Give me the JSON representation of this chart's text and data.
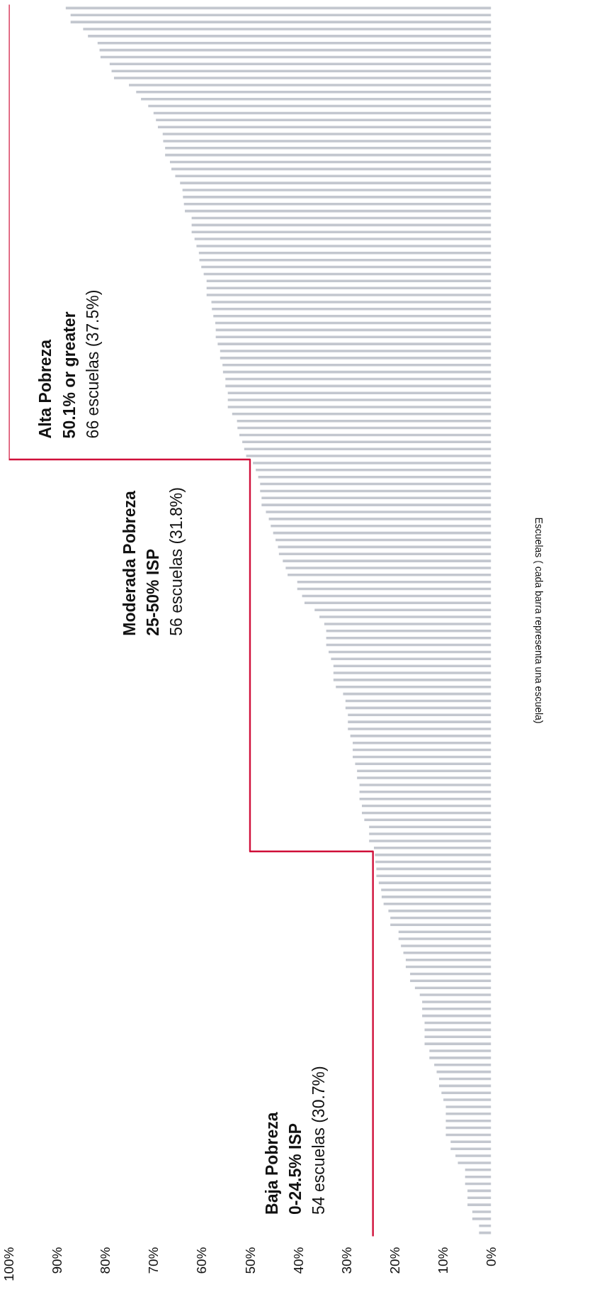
{
  "chart_data": {
    "type": "bar",
    "orientation": "horizontal",
    "categories": [
      null,
      null,
      null,
      null,
      null,
      null,
      null,
      null,
      null,
      null,
      null,
      null,
      null,
      null,
      null,
      null,
      null,
      null,
      null,
      null,
      null,
      null,
      null,
      null,
      null,
      null,
      null,
      null,
      null,
      null,
      null,
      null,
      null,
      null,
      null,
      null,
      null,
      null,
      null,
      null,
      null,
      null,
      null,
      null,
      null,
      null,
      null,
      null,
      null,
      null,
      null,
      null,
      null,
      null,
      null,
      null,
      null,
      null,
      null,
      null,
      null,
      null,
      null,
      null,
      null,
      null,
      null,
      null,
      null,
      null,
      null,
      null,
      null,
      null,
      null,
      null,
      null,
      null,
      null,
      null,
      null,
      null,
      null,
      null,
      null,
      null,
      null,
      null,
      null,
      null,
      null,
      null,
      null,
      null,
      null,
      null,
      null,
      null,
      null,
      null,
      null,
      null,
      null,
      null,
      null,
      null,
      null,
      null,
      null,
      null,
      null,
      null,
      null,
      null,
      null,
      null,
      null,
      null,
      null,
      null,
      null,
      null,
      null,
      null,
      null,
      null,
      null,
      null,
      null,
      null,
      null,
      null,
      null,
      null,
      null,
      null,
      null,
      null,
      null,
      null,
      null,
      null,
      null,
      null,
      null,
      null,
      null,
      null,
      null,
      null,
      null,
      null,
      null,
      null,
      null,
      null,
      null,
      null,
      null,
      null,
      null,
      null,
      null,
      null,
      null,
      null,
      null,
      null,
      null,
      null,
      null,
      null,
      null,
      null,
      null,
      null
    ],
    "series": [
      {
        "color": "#c3c7cf",
        "values": [
          88.2,
          87.2,
          87.2,
          84.6,
          83.6,
          81.6,
          81.2,
          81.0,
          79.1,
          78.7,
          78.2,
          75.1,
          73.6,
          72.6,
          71.1,
          70.0,
          69.5,
          69.1,
          68.1,
          68.0,
          67.6,
          67.6,
          66.6,
          66.3,
          65.5,
          64.5,
          64.0,
          63.9,
          63.7,
          63.5,
          62.1,
          62.1,
          62.1,
          61.5,
          61.1,
          60.6,
          60.5,
          60.1,
          59.6,
          59.0,
          59.0,
          59.0,
          58.0,
          57.9,
          57.6,
          57.2,
          57.1,
          57.1,
          56.7,
          56.2,
          56.2,
          55.7,
          55.6,
          55.1,
          55.1,
          54.6,
          54.6,
          54.6,
          53.7,
          52.7,
          52.6,
          52.2,
          51.6,
          51.2,
          50.8,
          49.4,
          48.8,
          48.3,
          47.9,
          47.9,
          47.6,
          47.6,
          46.7,
          46.1,
          45.7,
          45.2,
          44.7,
          44.2,
          44.0,
          43.2,
          42.6,
          42.2,
          40.2,
          40.2,
          39.2,
          38.7,
          36.6,
          35.6,
          34.6,
          34.2,
          34.2,
          34.2,
          33.7,
          33.2,
          32.7,
          32.7,
          32.7,
          32.2,
          30.7,
          30.2,
          30.2,
          29.7,
          29.7,
          29.7,
          29.2,
          28.7,
          28.7,
          28.7,
          28.2,
          27.8,
          27.8,
          27.3,
          27.3,
          27.3,
          26.8,
          26.8,
          26.3,
          25.3,
          25.3,
          25.3,
          24.3,
          24.1,
          24.0,
          23.8,
          23.8,
          23.3,
          22.8,
          22.7,
          22.3,
          21.3,
          20.9,
          20.9,
          19.2,
          19.2,
          18.7,
          18.2,
          17.7,
          17.7,
          16.8,
          16.8,
          15.8,
          14.8,
          14.3,
          14.3,
          14.3,
          13.8,
          13.8,
          13.8,
          13.8,
          12.8,
          12.8,
          11.8,
          11.3,
          10.8,
          10.8,
          10.3,
          9.9,
          9.4,
          9.4,
          9.4,
          9.4,
          9.4,
          8.4,
          8.4,
          7.4,
          6.9,
          5.4,
          5.4,
          5.4,
          4.9,
          4.9,
          4.9,
          3.9,
          3.9,
          2.5,
          2.5
        ]
      },
      {
        "type": "step",
        "color": "#d0103a",
        "values": [
          100,
          100,
          100,
          100,
          100,
          100,
          100,
          100,
          100,
          100,
          100,
          100,
          100,
          100,
          100,
          100,
          100,
          100,
          100,
          100,
          100,
          100,
          100,
          100,
          100,
          100,
          100,
          100,
          100,
          100,
          100,
          100,
          100,
          100,
          100,
          100,
          100,
          100,
          100,
          100,
          100,
          100,
          100,
          100,
          100,
          100,
          100,
          100,
          100,
          100,
          100,
          100,
          100,
          100,
          100,
          100,
          100,
          100,
          100,
          100,
          100,
          100,
          100,
          100,
          100,
          50,
          50,
          50,
          50,
          50,
          50,
          50,
          50,
          50,
          50,
          50,
          50,
          50,
          50,
          50,
          50,
          50,
          50,
          50,
          50,
          50,
          50,
          50,
          50,
          50,
          50,
          50,
          50,
          50,
          50,
          50,
          50,
          50,
          50,
          50,
          50,
          50,
          50,
          50,
          50,
          50,
          50,
          50,
          50,
          50,
          50,
          50,
          50,
          50,
          50,
          50,
          50,
          50,
          50,
          50,
          50,
          24.5,
          24.5,
          24.5,
          24.5,
          24.5,
          24.5,
          24.5,
          24.5,
          24.5,
          24.5,
          24.5,
          24.5,
          24.5,
          24.5,
          24.5,
          24.5,
          24.5,
          24.5,
          24.5,
          24.5,
          24.5,
          24.5,
          24.5,
          24.5,
          24.5,
          24.5,
          24.5,
          24.5,
          24.5,
          24.5,
          24.5,
          24.5,
          24.5,
          24.5,
          24.5,
          24.5,
          24.5,
          24.5,
          24.5,
          24.5,
          24.5,
          24.5,
          24.5,
          24.5,
          24.5,
          24.5,
          24.5,
          24.5,
          24.5,
          24.5,
          24.5,
          24.5,
          24.5,
          24.5,
          24.5
        ]
      }
    ],
    "xlim": [
      100,
      0
    ],
    "xticks": [
      {
        "value": 0,
        "label": "0%"
      },
      {
        "value": 10,
        "label": "10%"
      },
      {
        "value": 20,
        "label": "20%"
      },
      {
        "value": 30,
        "label": "30%"
      },
      {
        "value": 40,
        "label": "40%"
      },
      {
        "value": 50,
        "label": "50%"
      },
      {
        "value": 60,
        "label": "60%"
      },
      {
        "value": 70,
        "label": "70%"
      },
      {
        "value": 80,
        "label": "80%"
      },
      {
        "value": 90,
        "label": "90%"
      },
      {
        "value": 100,
        "label": "100%"
      }
    ],
    "annotations": [
      "Baja Pobreza\n0-24.5% ISP\n54 escuelas (30.7%)",
      "Moderada Pobreza\n25-50% ISP\n56 escuelas (31.8%)",
      "Alta Pobreza\n50.1% or greater\n66 escuelas (37.5%)",
      "Escuelas ( cada barra representa una escuela)"
    ]
  }
}
